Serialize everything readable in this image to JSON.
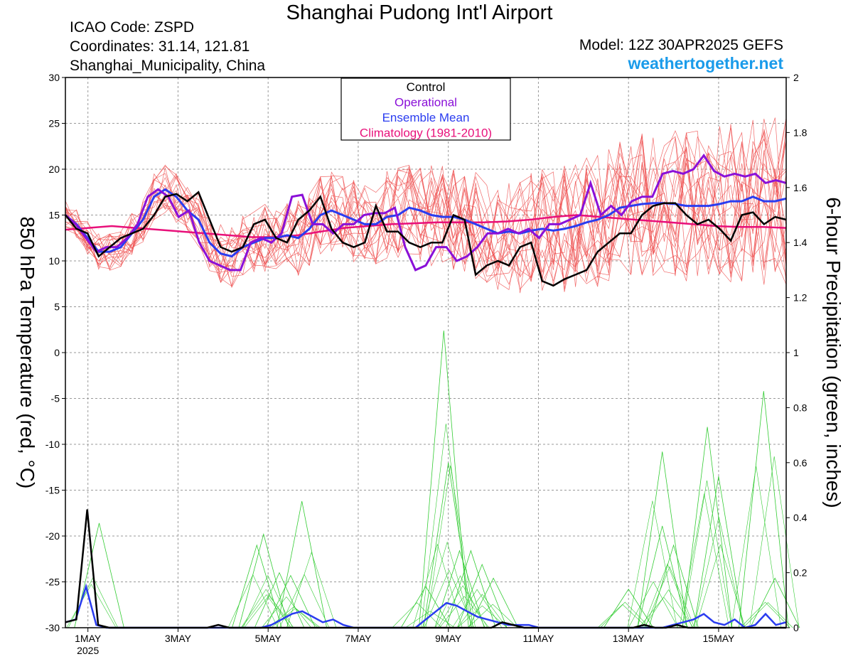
{
  "header": {
    "title": "Shanghai Pudong Int'l Airport",
    "icao": "ICAO Code: ZSPD",
    "coords": "Coordinates: 31.14, 121.81",
    "location": "Shanghai_Municipality, China",
    "model": "Model: 12Z 30APR2025 GEFS",
    "site": "weathertogether.net"
  },
  "legend": {
    "items": [
      {
        "label": "Control",
        "color": "#000000"
      },
      {
        "label": "Operational",
        "color": "#8a10d8"
      },
      {
        "label": "Ensemble Mean",
        "color": "#2a3cf0"
      },
      {
        "label": "Climatology (1981-2010)",
        "color": "#e8107a"
      }
    ]
  },
  "chart_data": {
    "type": "line",
    "ylabel_left": "850 hPa Temperature (red, °C)",
    "ylabel_right": "6-hour Precipitation (green, inches)",
    "ylim_left": [
      -30,
      30
    ],
    "ylim_right": [
      0,
      2
    ],
    "yticks_left": [
      "30",
      "25",
      "20",
      "15",
      "10",
      "5",
      "0",
      "-5",
      "-10",
      "-15",
      "-20",
      "-25",
      "-30"
    ],
    "yticks_right": [
      "2",
      "1.8",
      "1.6",
      "1.4",
      "1.2",
      "1",
      "0.8",
      "0.6",
      "0.4",
      "0.2",
      "0"
    ],
    "x_start_day": 30.5,
    "x_end_day": 46.5,
    "xticks": [
      {
        "day": 31,
        "label": "1MAY",
        "sub": "2025"
      },
      {
        "day": 33,
        "label": "3MAY"
      },
      {
        "day": 35,
        "label": "5MAY"
      },
      {
        "day": 37,
        "label": "7MAY"
      },
      {
        "day": 39,
        "label": "9MAY"
      },
      {
        "day": 41,
        "label": "11MAY"
      },
      {
        "day": 43,
        "label": "13MAY"
      },
      {
        "day": 45,
        "label": "15MAY"
      }
    ],
    "temperature": {
      "control": [
        15,
        13.5,
        13,
        10.5,
        11.5,
        12.5,
        13,
        13.5,
        15,
        17,
        17.3,
        16.5,
        17.5,
        14.5,
        11.5,
        11,
        11.5,
        14,
        14.5,
        12.5,
        12,
        14.5,
        15.5,
        17,
        13.5,
        12,
        11.5,
        12,
        16,
        13.2,
        13.2,
        12,
        11.5,
        12,
        12,
        15,
        14.5,
        8.5,
        9.5,
        10,
        9.5,
        11.5,
        12,
        7.8,
        7.3,
        8,
        8.5,
        9,
        11,
        12,
        13,
        13,
        15,
        16,
        16.3,
        16.3,
        15,
        14,
        14.5,
        13.5,
        12.2,
        15,
        15.3,
        14,
        14.8,
        14.5
      ],
      "operational": [
        15,
        14,
        12.5,
        11,
        11.5,
        11.5,
        12.5,
        14,
        17,
        17.8,
        17,
        14.8,
        15.5,
        12,
        10,
        9.5,
        9,
        9,
        12,
        12.5,
        12,
        13,
        17,
        17.2,
        14,
        14,
        13,
        14,
        14,
        15,
        15.2,
        15.2,
        15.8,
        11.5,
        9,
        9.5,
        11.5,
        11.5,
        10,
        10.5,
        11.5,
        13,
        13,
        13.5,
        13,
        13.5,
        12.5,
        14,
        14,
        14.5,
        15,
        18.5,
        15,
        16,
        15,
        16.5,
        17,
        17,
        19.5,
        19.8,
        19.5,
        20,
        21.5,
        19.8,
        19.2,
        19.5,
        19.2,
        19.5,
        18.5,
        18.8,
        18.5
      ],
      "mean": [
        15,
        14,
        12.5,
        11,
        11,
        11.5,
        13,
        14.5,
        17,
        17.8,
        17,
        15.5,
        14.5,
        12,
        10.8,
        10.5,
        11.5,
        12,
        12.5,
        12.5,
        12.8,
        12.5,
        13.5,
        15,
        15.5,
        15,
        14.5,
        14,
        14,
        14.8,
        15,
        15.8,
        15.5,
        15,
        14.8,
        14.8,
        14.5,
        14,
        13.5,
        13,
        13.2,
        13,
        13.3,
        13.5,
        13.3,
        13.5,
        13.8,
        14.2,
        14.5,
        15,
        15.8,
        16,
        16.2,
        16.3,
        16.3,
        16.2,
        16,
        16,
        16,
        16.2,
        16.5,
        16.5,
        17,
        16.5,
        16.5,
        16.8
      ],
      "climatology": [
        13.4,
        13.6,
        13.8,
        13.6,
        13.4,
        13.2,
        13,
        12.8,
        12.6,
        12.6,
        12.8,
        13.2,
        13.6,
        13.8,
        14,
        14.1,
        14.2,
        14.2,
        14.2,
        14.3,
        14.5,
        14.8,
        15,
        14.8,
        14.6,
        14.4,
        14.2,
        14.0,
        13.8,
        13.7,
        13.7,
        13.6
      ]
    },
    "precipitation": {
      "control": [
        0.02,
        0.03,
        0.43,
        0.01,
        0,
        0,
        0,
        0,
        0,
        0,
        0,
        0,
        0,
        0,
        0.01,
        0,
        0,
        0,
        0,
        0,
        0,
        0,
        0,
        0,
        0,
        0,
        0,
        0,
        0,
        0,
        0,
        0,
        0,
        0,
        0,
        0,
        0,
        0,
        0,
        0,
        0.02,
        0.01,
        0,
        0,
        0,
        0,
        0,
        0,
        0,
        0,
        0,
        0,
        0,
        0.01,
        0,
        0,
        0.01,
        0,
        0,
        0,
        0,
        0,
        0,
        0,
        0,
        0,
        0
      ],
      "mean": [
        0.02,
        0.03,
        0.15,
        0.01,
        0,
        0,
        0,
        0,
        0,
        0,
        0,
        0,
        0,
        0,
        0,
        0,
        0,
        0,
        0,
        0,
        0.01,
        0.03,
        0.05,
        0.06,
        0.04,
        0.02,
        0.03,
        0.01,
        0,
        0,
        0,
        0,
        0,
        0,
        0,
        0.03,
        0.06,
        0.09,
        0.08,
        0.06,
        0.04,
        0.03,
        0.02,
        0.01,
        0.01,
        0.01,
        0,
        0,
        0,
        0,
        0,
        0,
        0,
        0,
        0,
        0,
        0,
        0,
        0,
        0.01,
        0.02,
        0.03,
        0.05,
        0.02,
        0.01,
        0.03,
        0,
        0.01,
        0.05,
        0.01,
        0.02
      ],
      "member_peaks": [
        {
          "day": 31.25,
          "value": 0.38
        },
        {
          "day": 34.75,
          "value": 0.3
        },
        {
          "day": 34.9,
          "value": 0.34
        },
        {
          "day": 35.25,
          "value": 0.2
        },
        {
          "day": 35.5,
          "value": 0.19
        },
        {
          "day": 35.75,
          "value": 0.46
        },
        {
          "day": 38.5,
          "value": 0.15
        },
        {
          "day": 38.9,
          "value": 1.08
        },
        {
          "day": 39.0,
          "value": 0.6
        },
        {
          "day": 39.25,
          "value": 0.28
        },
        {
          "day": 39.5,
          "value": 0.28
        },
        {
          "day": 39.75,
          "value": 0.23
        },
        {
          "day": 40.0,
          "value": 0.18
        },
        {
          "day": 43.0,
          "value": 0.14
        },
        {
          "day": 43.75,
          "value": 0.64
        },
        {
          "day": 43.75,
          "value": 0.37
        },
        {
          "day": 44.0,
          "value": 0.3
        },
        {
          "day": 44.75,
          "value": 0.73
        },
        {
          "day": 45.0,
          "value": 0.55
        },
        {
          "day": 46.0,
          "value": 0.86
        },
        {
          "day": 46.25,
          "value": 0.18
        }
      ]
    }
  }
}
